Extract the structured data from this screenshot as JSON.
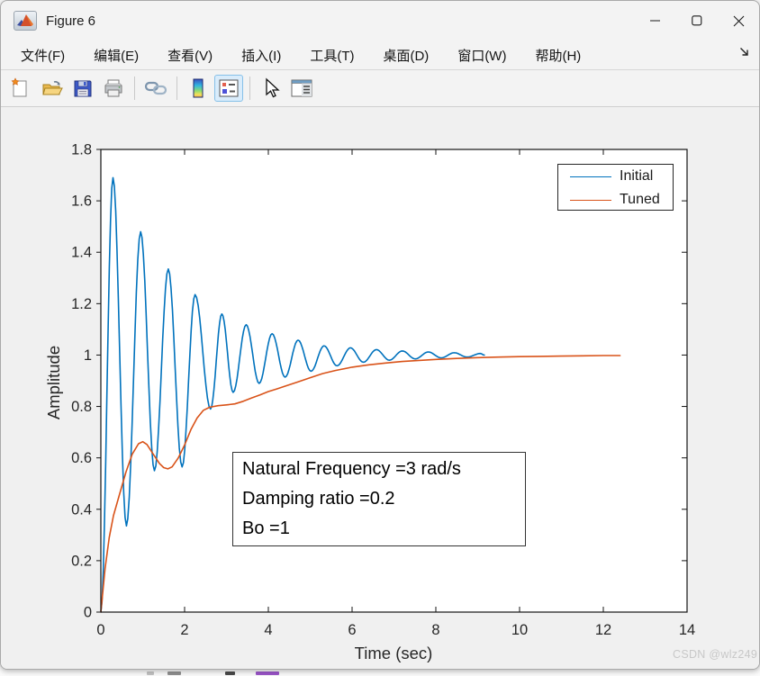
{
  "window": {
    "title": "Figure 6",
    "app_icon": "matlab-logo-icon",
    "controls": {
      "minimize": "minimize",
      "maximize": "maximize",
      "close": "close"
    }
  },
  "menu": {
    "items": [
      "文件(F)",
      "编辑(E)",
      "查看(V)",
      "插入(I)",
      "工具(T)",
      "桌面(D)",
      "窗口(W)",
      "帮助(H)"
    ],
    "overflow_arrow": "menu-overflow-arrow-icon"
  },
  "toolbar": {
    "icons": [
      "new-figure-icon",
      "open-file-icon",
      "save-icon",
      "print-icon",
      "link-plot-icon",
      "insert-colorbar-icon",
      "insert-legend-icon",
      "edit-plot-cursor-icon",
      "property-inspector-icon"
    ],
    "active_icon": "insert-legend-icon"
  },
  "watermark": "CSDN @wlz249",
  "chart_data": {
    "type": "line",
    "title": "",
    "xlabel": "Time (sec)",
    "ylabel": "Amplitude",
    "xlim": [
      0,
      14
    ],
    "ylim": [
      0,
      1.8
    ],
    "xticks": [
      "0",
      "2",
      "4",
      "6",
      "8",
      "10",
      "12",
      "14"
    ],
    "yticks": [
      "0",
      "0.2",
      "0.4",
      "0.6",
      "0.8",
      "1",
      "1.2",
      "1.4",
      "1.6",
      "1.8"
    ],
    "grid": false,
    "legend": {
      "position": "northeast",
      "entries": [
        {
          "label": "Initial",
          "color": "#0072BD"
        },
        {
          "label": "Tuned",
          "color": "#D95319"
        }
      ]
    },
    "annotation": {
      "lines": [
        "Natural Frequency =3 rad/s",
        "Damping ratio =0.2",
        "Bo =1"
      ]
    },
    "series": [
      {
        "name": "Initial",
        "color": "#0072BD",
        "style": "oscillatory_extrema",
        "points": [
          [
            0,
            0
          ],
          [
            0.29,
            1.69
          ],
          [
            0.61,
            0.335
          ],
          [
            0.95,
            1.48
          ],
          [
            1.28,
            0.55
          ],
          [
            1.61,
            1.335
          ],
          [
            1.94,
            0.565
          ],
          [
            2.25,
            1.235
          ],
          [
            2.62,
            0.79
          ],
          [
            2.89,
            1.16
          ],
          [
            3.16,
            0.855
          ],
          [
            3.47,
            1.118
          ],
          [
            3.78,
            0.89
          ],
          [
            4.09,
            1.083
          ],
          [
            4.4,
            0.914
          ],
          [
            4.71,
            1.058
          ],
          [
            5.02,
            0.937
          ],
          [
            5.33,
            1.036
          ],
          [
            5.64,
            0.958
          ],
          [
            5.96,
            1.028
          ],
          [
            6.27,
            0.972
          ],
          [
            6.58,
            1.021
          ],
          [
            6.89,
            0.98
          ],
          [
            7.2,
            1.016
          ],
          [
            7.51,
            0.985
          ],
          [
            7.82,
            1.012
          ],
          [
            8.13,
            0.989
          ],
          [
            8.44,
            1.009
          ],
          [
            8.75,
            0.992
          ],
          [
            9.06,
            1.006
          ],
          [
            9.16,
            1.0
          ]
        ]
      },
      {
        "name": "Tuned",
        "color": "#D95319",
        "style": "polyline",
        "points": [
          [
            0,
            0
          ],
          [
            0.1,
            0.17
          ],
          [
            0.2,
            0.29
          ],
          [
            0.3,
            0.375
          ],
          [
            0.45,
            0.46
          ],
          [
            0.6,
            0.545
          ],
          [
            0.75,
            0.615
          ],
          [
            0.9,
            0.655
          ],
          [
            1.0,
            0.663
          ],
          [
            1.1,
            0.652
          ],
          [
            1.25,
            0.615
          ],
          [
            1.4,
            0.578
          ],
          [
            1.5,
            0.562
          ],
          [
            1.6,
            0.557
          ],
          [
            1.7,
            0.565
          ],
          [
            1.85,
            0.6
          ],
          [
            2.0,
            0.65
          ],
          [
            2.15,
            0.71
          ],
          [
            2.3,
            0.755
          ],
          [
            2.45,
            0.785
          ],
          [
            2.6,
            0.797
          ],
          [
            2.8,
            0.803
          ],
          [
            3.0,
            0.806
          ],
          [
            3.2,
            0.81
          ],
          [
            3.4,
            0.82
          ],
          [
            3.6,
            0.833
          ],
          [
            3.8,
            0.845
          ],
          [
            4.0,
            0.858
          ],
          [
            4.2,
            0.868
          ],
          [
            4.4,
            0.879
          ],
          [
            4.7,
            0.895
          ],
          [
            5.0,
            0.912
          ],
          [
            5.3,
            0.928
          ],
          [
            5.6,
            0.94
          ],
          [
            6.0,
            0.953
          ],
          [
            6.4,
            0.962
          ],
          [
            6.8,
            0.969
          ],
          [
            7.2,
            0.975
          ],
          [
            7.6,
            0.979
          ],
          [
            8.0,
            0.983
          ],
          [
            8.5,
            0.987
          ],
          [
            9.0,
            0.99
          ],
          [
            9.5,
            0.992
          ],
          [
            10.0,
            0.994
          ],
          [
            10.5,
            0.995
          ],
          [
            11.0,
            0.996
          ],
          [
            11.5,
            0.997
          ],
          [
            12.0,
            0.998
          ],
          [
            12.4,
            0.998
          ]
        ]
      }
    ]
  }
}
